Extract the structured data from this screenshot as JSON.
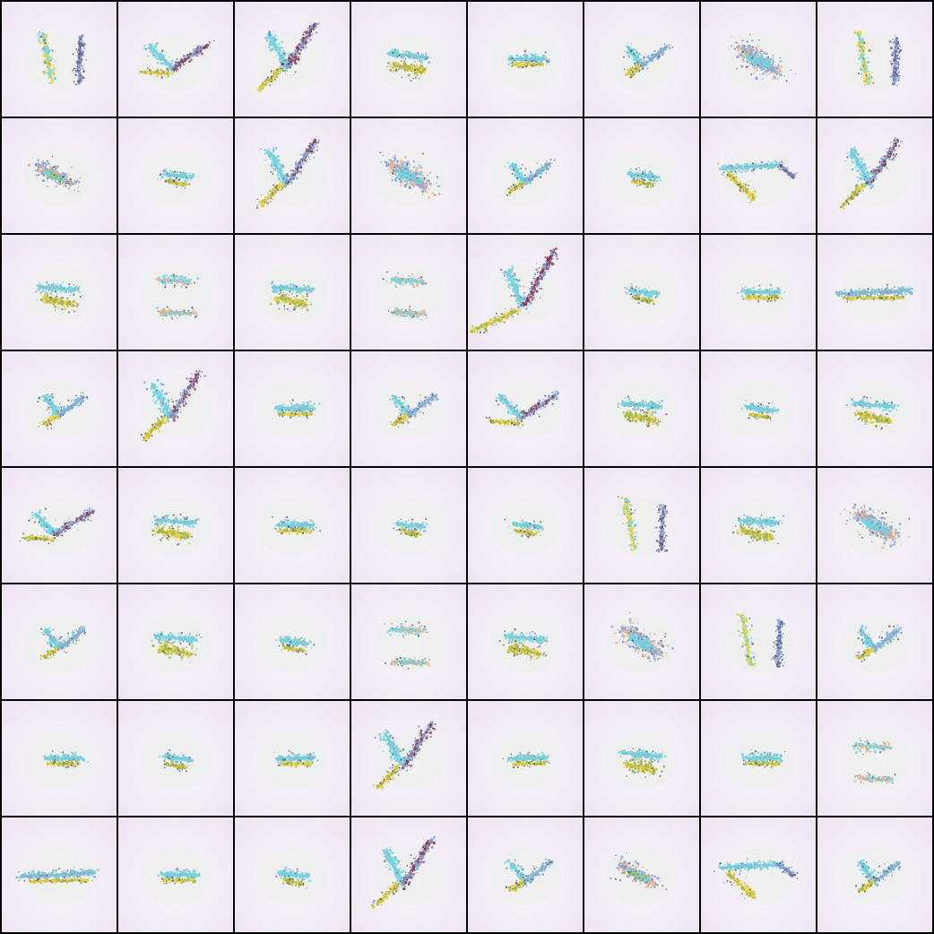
{
  "grid": {
    "rows": 8,
    "cols": 8
  },
  "palette": {
    "background": "#f4eff6",
    "cyan": "#6fd6e6",
    "teal": "#7fc7cf",
    "blue": "#8aa6d6",
    "yellow": "#e6d24a",
    "olive": "#a6b24a",
    "peach": "#f0b890",
    "purple": "#6a5a8a",
    "maroon": "#8a3a4a",
    "green": "#9ad6a6",
    "dark": "#4a4a5a"
  },
  "tiles": [
    {
      "shape": "pair",
      "seed": 1
    },
    {
      "shape": "vee-wide",
      "seed": 2
    },
    {
      "shape": "vee-big",
      "seed": 3
    },
    {
      "shape": "slug-low",
      "seed": 4
    },
    {
      "shape": "bar",
      "seed": 5
    },
    {
      "shape": "vee",
      "seed": 6
    },
    {
      "shape": "blob",
      "seed": 7
    },
    {
      "shape": "pair",
      "seed": 8
    },
    {
      "shape": "blob-small",
      "seed": 9
    },
    {
      "shape": "slug-small",
      "seed": 10
    },
    {
      "shape": "vee-big",
      "seed": 11
    },
    {
      "shape": "blob",
      "seed": 12
    },
    {
      "shape": "vee",
      "seed": 13
    },
    {
      "shape": "slug-small",
      "seed": 14
    },
    {
      "shape": "hook",
      "seed": 15
    },
    {
      "shape": "vee-big",
      "seed": 16
    },
    {
      "shape": "slug-low",
      "seed": 17
    },
    {
      "shape": "stack",
      "seed": 18
    },
    {
      "shape": "slug-low",
      "seed": 19
    },
    {
      "shape": "stack",
      "seed": 20
    },
    {
      "shape": "vee-huge",
      "seed": 21
    },
    {
      "shape": "slug-small",
      "seed": 22
    },
    {
      "shape": "bar",
      "seed": 23
    },
    {
      "shape": "bar-long",
      "seed": 24
    },
    {
      "shape": "vee",
      "seed": 25
    },
    {
      "shape": "vee-big",
      "seed": 26
    },
    {
      "shape": "bar",
      "seed": 27
    },
    {
      "shape": "vee",
      "seed": 28
    },
    {
      "shape": "vee-wide",
      "seed": 29
    },
    {
      "shape": "slug-low",
      "seed": 30
    },
    {
      "shape": "slug-small",
      "seed": 31
    },
    {
      "shape": "slug-low",
      "seed": 32
    },
    {
      "shape": "vee-wide",
      "seed": 33
    },
    {
      "shape": "slug-low",
      "seed": 34
    },
    {
      "shape": "bar",
      "seed": 35
    },
    {
      "shape": "slug-small",
      "seed": 36
    },
    {
      "shape": "slug-small",
      "seed": 37
    },
    {
      "shape": "pair",
      "seed": 38
    },
    {
      "shape": "slug-low",
      "seed": 39
    },
    {
      "shape": "blob",
      "seed": 40
    },
    {
      "shape": "vee",
      "seed": 41
    },
    {
      "shape": "slug-low",
      "seed": 42
    },
    {
      "shape": "slug-small",
      "seed": 43
    },
    {
      "shape": "stack",
      "seed": 44
    },
    {
      "shape": "slug-low",
      "seed": 45
    },
    {
      "shape": "blob",
      "seed": 46
    },
    {
      "shape": "pair",
      "seed": 47
    },
    {
      "shape": "vee",
      "seed": 48
    },
    {
      "shape": "bar",
      "seed": 49
    },
    {
      "shape": "slug-small",
      "seed": 50
    },
    {
      "shape": "bar",
      "seed": 51
    },
    {
      "shape": "vee-big",
      "seed": 52
    },
    {
      "shape": "bar",
      "seed": 53
    },
    {
      "shape": "slug-low",
      "seed": 54
    },
    {
      "shape": "bar",
      "seed": 55
    },
    {
      "shape": "stack",
      "seed": 56
    },
    {
      "shape": "bar-long",
      "seed": 57
    },
    {
      "shape": "bar",
      "seed": 58
    },
    {
      "shape": "slug-small",
      "seed": 59
    },
    {
      "shape": "vee-big",
      "seed": 60
    },
    {
      "shape": "vee",
      "seed": 61
    },
    {
      "shape": "blob-small",
      "seed": 62
    },
    {
      "shape": "hook",
      "seed": 63
    },
    {
      "shape": "vee",
      "seed": 64
    }
  ]
}
